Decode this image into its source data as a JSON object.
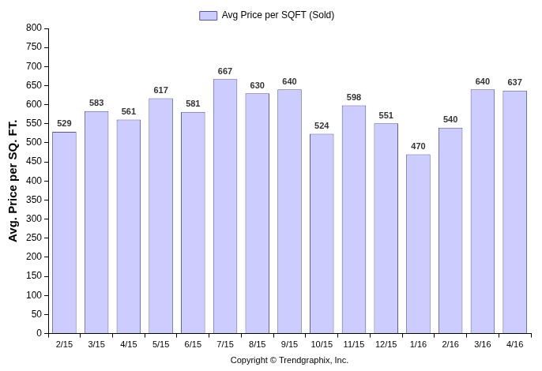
{
  "chart_data": {
    "type": "bar",
    "series": [
      {
        "name": "Avg Price per SQFT (Sold)",
        "color": "#ccccff",
        "values": [
          529,
          583,
          561,
          617,
          581,
          667,
          630,
          640,
          524,
          598,
          551,
          470,
          540,
          640,
          637
        ]
      }
    ],
    "categories": [
      "2/15",
      "3/15",
      "4/15",
      "5/15",
      "6/15",
      "7/15",
      "8/15",
      "9/15",
      "10/15",
      "11/15",
      "12/15",
      "1/16",
      "2/16",
      "3/16",
      "4/16"
    ],
    "ylabel": "Avg. Price per SQ. FT.",
    "xlabel": "Copyright © Trendgraphix, Inc.",
    "ylim": [
      0,
      800
    ],
    "yticks": [
      0,
      50,
      100,
      150,
      200,
      250,
      300,
      350,
      400,
      450,
      500,
      550,
      600,
      650,
      700,
      750,
      800
    ],
    "grid": false,
    "legend": "top",
    "data_labels": true
  }
}
